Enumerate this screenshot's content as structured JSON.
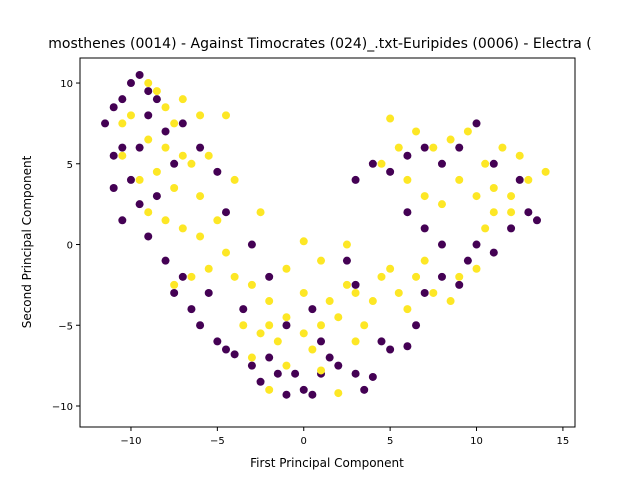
{
  "chart_data": {
    "type": "scatter",
    "title": "mosthenes (0014) - Against Timocrates (024)_.txt-Euripides (0006) - Electra (",
    "x_label": "First Principal Component",
    "y_label": "Second Principal Component",
    "xlim": [
      -12.95,
      15.7
    ],
    "ylim": [
      -11.3,
      11.55
    ],
    "xticks": [
      {
        "value": -10,
        "label": "−10"
      },
      {
        "value": -5,
        "label": "−5"
      },
      0,
      5,
      10,
      15
    ],
    "yticks": [
      {
        "value": -10,
        "label": "−10"
      },
      {
        "value": -5,
        "label": "−5"
      },
      0,
      5,
      10
    ],
    "series": [
      {
        "color": "#440154",
        "x": [
          -11.5,
          -11,
          -10.5,
          -10,
          -9.5,
          -9,
          -10.5,
          -11,
          -10,
          -11,
          -9.5,
          -10.5,
          -9,
          -8,
          -7.5,
          -7,
          -6.5,
          -6,
          -5,
          -4.5,
          -4,
          -3,
          -2.5,
          -2,
          -1.5,
          -1,
          -0.5,
          0,
          0.5,
          1,
          1.5,
          2,
          3,
          3.5,
          4,
          4.5,
          5,
          6,
          6.5,
          7,
          8,
          9,
          9.5,
          10,
          11,
          12,
          13,
          13.5,
          12.5,
          11,
          10,
          9,
          8,
          7,
          6,
          5,
          4,
          3,
          6,
          7,
          8,
          2.5,
          3,
          -8,
          -7.5,
          -8.5,
          -6,
          -5,
          -4.5,
          -3,
          -2,
          -1,
          0.5,
          1,
          -3.5,
          -5.5,
          -9,
          -8.5,
          -7,
          -9.5
        ],
        "y": [
          7.5,
          8.5,
          9,
          10,
          10.5,
          9.5,
          6,
          5.5,
          4,
          3.5,
          2.5,
          1.5,
          0.5,
          -1,
          -3,
          -2,
          -4,
          -5,
          -6,
          -6.5,
          -6.8,
          -7.5,
          -8.5,
          -7,
          -8,
          -9.3,
          -8,
          -9,
          -9.3,
          -8,
          -7,
          -7.5,
          -8,
          -9,
          -8.2,
          -6,
          -6.5,
          -6.3,
          -5,
          -3,
          -2,
          -2.5,
          -1,
          0,
          -0.5,
          1,
          2,
          1.5,
          4,
          5,
          7.5,
          6,
          5,
          6,
          5.5,
          4.5,
          5,
          4,
          2,
          1,
          0,
          -1,
          -2.5,
          7,
          5,
          3,
          6,
          4.5,
          2,
          0,
          -2,
          -5,
          -4,
          -6,
          -4,
          -3,
          8,
          9,
          7.5,
          6
        ]
      },
      {
        "color": "#fde725",
        "x": [
          -10.5,
          -10,
          -9,
          -8.5,
          -8,
          -7.5,
          -9,
          -8,
          -7,
          -6.5,
          -9.5,
          -8.5,
          -7.5,
          -6,
          -9,
          -8,
          -7,
          -6,
          -5,
          -4.5,
          -5.5,
          -6.5,
          -7.5,
          -4,
          -3,
          -2,
          -3.5,
          -2.5,
          -1.5,
          -1,
          0,
          0,
          0.5,
          1,
          1.5,
          2,
          2.5,
          3,
          3.5,
          4,
          4.5,
          5,
          5.5,
          6,
          6.5,
          7,
          7.5,
          8.5,
          9,
          10,
          10.5,
          11,
          12,
          13,
          14,
          12.5,
          11.5,
          10.5,
          9.5,
          8.5,
          7.5,
          6.5,
          5.5,
          5,
          4.5,
          6,
          7,
          8,
          9,
          10,
          11,
          12,
          -3,
          -1,
          1,
          2,
          -2,
          0,
          2.5,
          1,
          -1,
          -2.5,
          -4,
          -5.5,
          -6,
          -4.5,
          -7,
          -2,
          3,
          -10.5
        ],
        "y": [
          7.5,
          8,
          10,
          9.5,
          8.5,
          7.5,
          6.5,
          6,
          5.5,
          5,
          4,
          4.5,
          3.5,
          3,
          2,
          1.5,
          1,
          0.5,
          1.5,
          -0.5,
          -1.5,
          -2,
          -2.5,
          -2,
          -2.5,
          -3.5,
          -5,
          -5.5,
          -6,
          -4.5,
          -3,
          -5.5,
          -6.5,
          -5,
          -3.5,
          -4.5,
          -2.5,
          -3,
          -5,
          -3.5,
          -2,
          -1.5,
          -3,
          -4,
          -2,
          -1,
          -3,
          -3.5,
          -2,
          -1.5,
          1,
          2,
          3,
          4,
          4.5,
          5.5,
          6,
          5,
          7,
          6.5,
          6,
          7,
          6,
          7.8,
          5,
          4,
          3,
          2.5,
          4,
          3,
          3.5,
          2,
          -7,
          -7.5,
          -7.8,
          -9.2,
          -9,
          0.2,
          0,
          -1,
          -1.5,
          2,
          4,
          5.5,
          8,
          8,
          9,
          -5,
          -6,
          5.5
        ]
      }
    ]
  }
}
